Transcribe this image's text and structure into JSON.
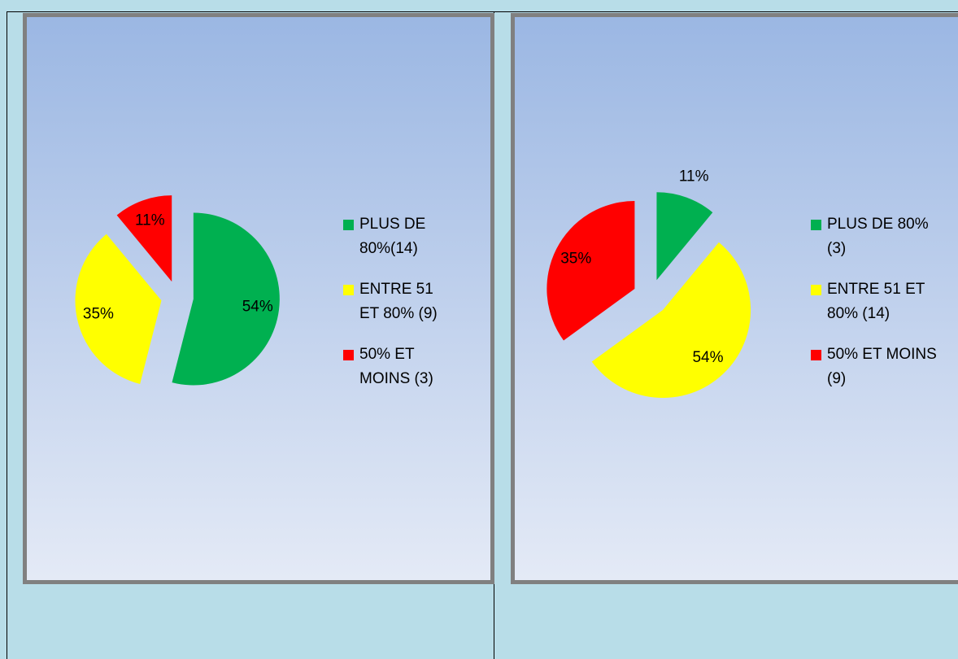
{
  "charts": [
    {
      "chart_data": {
        "type": "pie",
        "categories": [
          "PLUS DE 80%(14)",
          "ENTRE 51 ET 80% (9)",
          "50% ET MOINS (3)"
        ],
        "values": [
          54,
          35,
          11
        ],
        "value_labels": [
          "54%",
          "35%",
          "11%"
        ],
        "colors": [
          "#00b050",
          "#ffff00",
          "#ff0000"
        ],
        "exploded": true,
        "legend": "right"
      }
    },
    {
      "chart_data": {
        "type": "pie",
        "categories": [
          "PLUS DE 80% (3)",
          "ENTRE 51 ET 80% (14)",
          "50% ET MOINS (9)"
        ],
        "values": [
          11,
          54,
          35
        ],
        "value_labels": [
          "11%",
          "54%",
          "35%"
        ],
        "colors": [
          "#00b050",
          "#ffff00",
          "#ff0000"
        ],
        "exploded": true,
        "legend": "right"
      }
    }
  ]
}
